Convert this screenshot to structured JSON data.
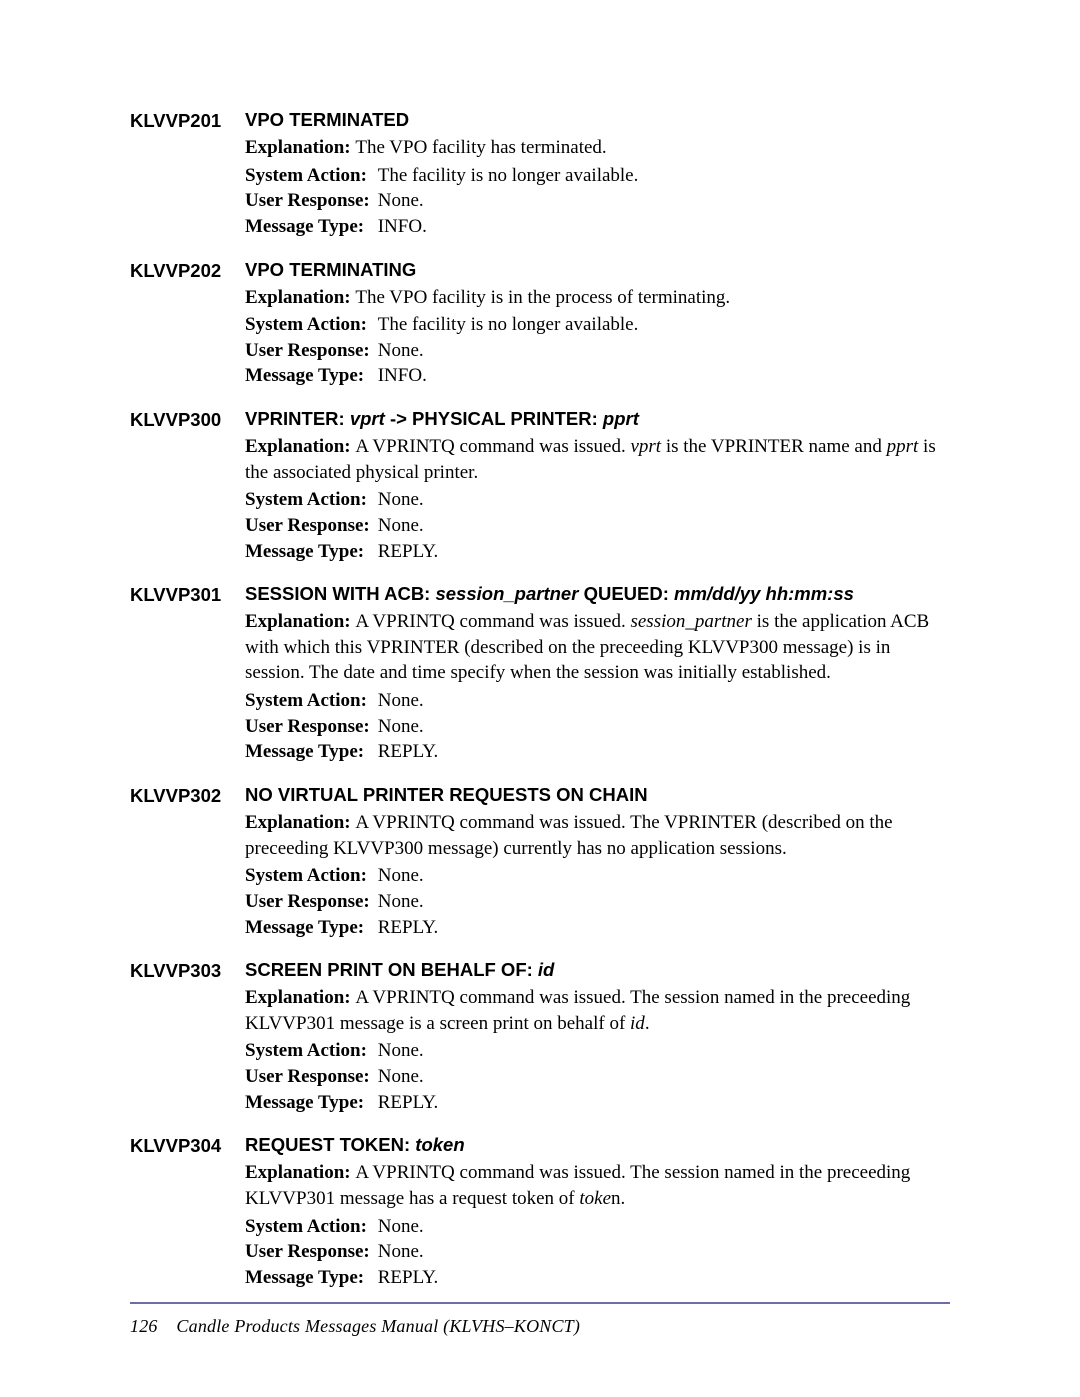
{
  "page": {
    "number": "126",
    "footer": "Candle Products Messages Manual (KLVHS–KONCT)",
    "rule_color": "#6a6faa"
  },
  "labels": {
    "explanation": "Explanation:",
    "system_action": "System Action:",
    "user_response": "User Response:",
    "message_type": "Message Type:"
  },
  "messages": [
    {
      "code": "KLVVP201",
      "title_parts": [
        {
          "t": "VPO TERMINATED",
          "i": false
        }
      ],
      "explanation": [
        {
          "t": "The VPO facility has terminated.",
          "i": false
        }
      ],
      "system_action": "The facility is no longer available.",
      "user_response": "None.",
      "message_type": "INFO."
    },
    {
      "code": "KLVVP202",
      "title_parts": [
        {
          "t": "VPO TERMINATING",
          "i": false
        }
      ],
      "explanation": [
        {
          "t": "The VPO facility is in the process of terminating.",
          "i": false
        }
      ],
      "system_action": "The facility is no longer available.",
      "user_response": "None.",
      "message_type": "INFO."
    },
    {
      "code": "KLVVP300",
      "title_parts": [
        {
          "t": "VPRINTER: ",
          "i": false
        },
        {
          "t": "vprt ",
          "i": true
        },
        {
          "t": "-> PHYSICAL PRINTER: ",
          "i": false
        },
        {
          "t": "pprt",
          "i": true
        }
      ],
      "explanation": [
        {
          "t": "A VPRINTQ command was issued. ",
          "i": false
        },
        {
          "t": "vprt",
          "i": true
        },
        {
          "t": " is the VPRINTER name and ",
          "i": false
        },
        {
          "t": "pprt",
          "i": true
        },
        {
          "t": " is the associated physical printer.",
          "i": false
        }
      ],
      "system_action": "None.",
      "user_response": "None.",
      "message_type": "REPLY."
    },
    {
      "code": "KLVVP301",
      "title_parts": [
        {
          "t": "SESSION WITH ACB: ",
          "i": false
        },
        {
          "t": "session_partner ",
          "i": true
        },
        {
          "t": "QUEUED: ",
          "i": false
        },
        {
          "t": "mm/dd/yy hh:mm:ss",
          "i": true
        }
      ],
      "explanation": [
        {
          "t": "A VPRINTQ command was issued. ",
          "i": false
        },
        {
          "t": "session_partner",
          "i": true
        },
        {
          "t": " is the application ACB with which this VPRINTER (described on the preceeding KLVVP300 message) is in session. The date and time specify when the session was initially established.",
          "i": false
        }
      ],
      "system_action": "None.",
      "user_response": "None.",
      "message_type": "REPLY."
    },
    {
      "code": "KLVVP302",
      "title_parts": [
        {
          "t": "NO VIRTUAL PRINTER REQUESTS ON CHAIN",
          "i": false
        }
      ],
      "explanation": [
        {
          "t": "A VPRINTQ command was issued. The VPRINTER (described on the preceeding KLVVP300 message) currently has no application sessions.",
          "i": false
        }
      ],
      "system_action": "None.",
      "user_response": "None.",
      "message_type": "REPLY."
    },
    {
      "code": "KLVVP303",
      "title_parts": [
        {
          "t": "SCREEN PRINT ON BEHALF OF: ",
          "i": false
        },
        {
          "t": "id",
          "i": true
        }
      ],
      "explanation": [
        {
          "t": "A VPRINTQ command was issued. The session named in the preceeding KLVVP301 message is a screen print on behalf of ",
          "i": false
        },
        {
          "t": "id",
          "i": true
        },
        {
          "t": ".",
          "i": false
        }
      ],
      "system_action": "None.",
      "user_response": "None.",
      "message_type": "REPLY."
    },
    {
      "code": "KLVVP304",
      "title_parts": [
        {
          "t": "REQUEST TOKEN: ",
          "i": false
        },
        {
          "t": "token",
          "i": true
        }
      ],
      "explanation": [
        {
          "t": "A VPRINTQ command was issued. The session named in the preceeding KLVVP301 message has a request token of ",
          "i": false
        },
        {
          "t": "toke",
          "i": true
        },
        {
          "t": "n.",
          "i": false
        }
      ],
      "system_action": "None.",
      "user_response": "None.",
      "message_type": "REPLY."
    }
  ]
}
